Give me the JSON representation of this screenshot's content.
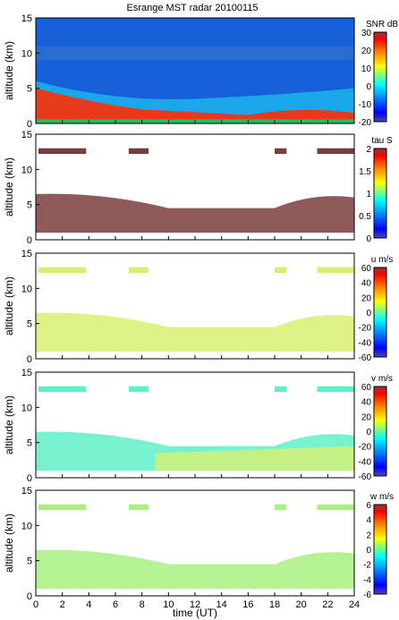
{
  "figure": {
    "title": "Esrange MST radar 20100115",
    "xlabel": "time (UT)",
    "x_ticks": [
      "0",
      "2",
      "4",
      "6",
      "8",
      "10",
      "12",
      "14",
      "16",
      "18",
      "20",
      "22",
      "24"
    ]
  },
  "chart_data": [
    {
      "type": "heatmap",
      "quantity": "SNR",
      "ylabel": "altitude (km)",
      "xlim": [
        0,
        24
      ],
      "ylim": [
        0,
        15
      ],
      "y_ticks": [
        "0",
        "5",
        "10",
        "15"
      ],
      "colorbar": {
        "label": "SNR dB",
        "range": [
          -20,
          30
        ],
        "ticks": [
          "30",
          "20",
          "10",
          "0",
          "-10",
          "-20"
        ]
      }
    },
    {
      "type": "heatmap",
      "quantity": "tau",
      "ylabel": "altitude (km)",
      "xlim": [
        0,
        24
      ],
      "ylim": [
        0,
        15
      ],
      "y_ticks": [
        "0",
        "5",
        "10",
        "15"
      ],
      "colorbar": {
        "label": "tau S",
        "range": [
          0,
          2
        ],
        "ticks": [
          "2",
          "1.5",
          "1",
          "0.5",
          "0"
        ]
      }
    },
    {
      "type": "heatmap",
      "quantity": "u",
      "ylabel": "altitude (km)",
      "xlim": [
        0,
        24
      ],
      "ylim": [
        0,
        15
      ],
      "y_ticks": [
        "0",
        "5",
        "10",
        "15"
      ],
      "colorbar": {
        "label": "u m/s",
        "range": [
          -60,
          60
        ],
        "ticks": [
          "60",
          "40",
          "20",
          "0",
          "-20",
          "-40",
          "-60"
        ]
      }
    },
    {
      "type": "heatmap",
      "quantity": "v",
      "ylabel": "altitude (km)",
      "xlim": [
        0,
        24
      ],
      "ylim": [
        0,
        15
      ],
      "y_ticks": [
        "0",
        "5",
        "10",
        "15"
      ],
      "colorbar": {
        "label": "v m/s",
        "range": [
          -60,
          60
        ],
        "ticks": [
          "60",
          "40",
          "20",
          "0",
          "-20",
          "-40",
          "-60"
        ]
      }
    },
    {
      "type": "heatmap",
      "quantity": "w",
      "ylabel": "altitude (km)",
      "xlim": [
        0,
        24
      ],
      "ylim": [
        0,
        15
      ],
      "y_ticks": [
        "0",
        "5",
        "10",
        "15"
      ],
      "colorbar": {
        "label": "w m/s",
        "range": [
          -6,
          6
        ],
        "ticks": [
          "6",
          "4",
          "2",
          "0",
          "-2",
          "-4",
          "-6"
        ]
      }
    }
  ]
}
